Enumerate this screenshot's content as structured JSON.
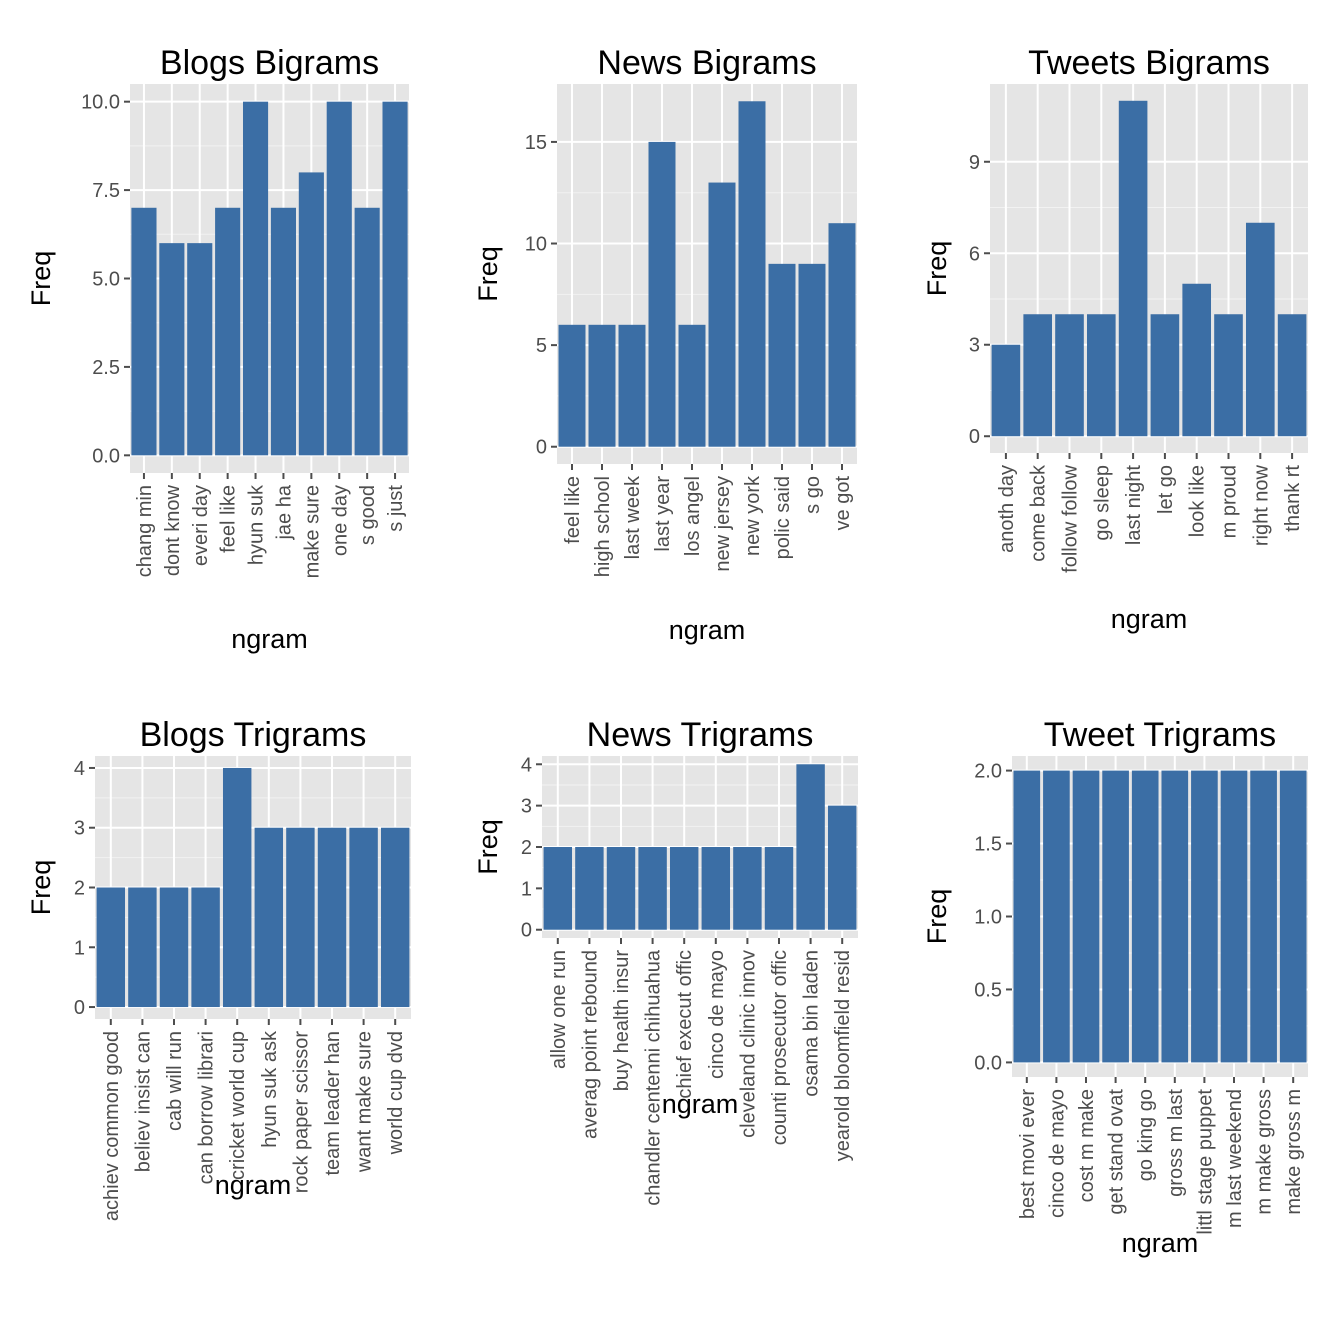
{
  "colors": {
    "bar": "#3b6ea5",
    "panel": "#e5e5e5",
    "grid": "#ffffff"
  },
  "chart_data": [
    {
      "type": "bar",
      "title": "Blogs Bigrams",
      "xlabel": "ngram",
      "ylabel": "Freq",
      "categories": [
        "chang min",
        "dont know",
        "everi day",
        "feel like",
        "hyun suk",
        "jae ha",
        "make sure",
        "one day",
        "s good",
        "s just"
      ],
      "values": [
        7,
        6,
        6,
        7,
        10,
        7,
        8,
        10,
        7,
        10
      ],
      "ylim": [
        -0.5,
        10.5
      ],
      "yticks": [
        0,
        2.5,
        5,
        7.5,
        10
      ],
      "ytick_labels": [
        "0.0",
        "2.5",
        "5.0",
        "7.5",
        "10.0"
      ]
    },
    {
      "type": "bar",
      "title": "News Bigrams",
      "xlabel": "ngram",
      "ylabel": "Freq",
      "categories": [
        "feel like",
        "high school",
        "last week",
        "last year",
        "los angel",
        "new jersey",
        "new york",
        "polic said",
        "s go",
        "ve got"
      ],
      "values": [
        6,
        6,
        6,
        15,
        6,
        13,
        17,
        9,
        9,
        11
      ],
      "ylim": [
        -0.85,
        17.85
      ],
      "yticks": [
        0,
        5,
        10,
        15
      ],
      "ytick_labels": [
        "0",
        "5",
        "10",
        "15"
      ]
    },
    {
      "type": "bar",
      "title": "Tweets Bigrams",
      "xlabel": "ngram",
      "ylabel": "Freq",
      "categories": [
        "anoth day",
        "come back",
        "follow follow",
        "go sleep",
        "last night",
        "let go",
        "look like",
        "m proud",
        "right now",
        "thank rt"
      ],
      "values": [
        3,
        4,
        4,
        4,
        11,
        4,
        5,
        4,
        7,
        4
      ],
      "ylim": [
        -0.55,
        11.55
      ],
      "yticks": [
        0,
        3,
        6,
        9
      ],
      "ytick_labels": [
        "0",
        "3",
        "6",
        "9"
      ]
    },
    {
      "type": "bar",
      "title": "Blogs Trigrams",
      "xlabel": "ngram",
      "ylabel": "Freq",
      "categories": [
        "achiev common good",
        "believ insist can",
        "cab will run",
        "can borrow librari",
        "cricket world cup",
        "hyun suk ask",
        "rock paper scissor",
        "team leader han",
        "want make sure",
        "world cup dvd"
      ],
      "values": [
        2,
        2,
        2,
        2,
        4,
        3,
        3,
        3,
        3,
        3
      ],
      "ylim": [
        -0.2,
        4.2
      ],
      "yticks": [
        0,
        1,
        2,
        3,
        4
      ],
      "ytick_labels": [
        "0",
        "1",
        "2",
        "3",
        "4"
      ]
    },
    {
      "type": "bar",
      "title": "News Trigrams",
      "xlabel": "ngram",
      "ylabel": "Freq",
      "categories": [
        "allow one run",
        "averag point rebound",
        "buy health insur",
        "chandler centenni chihuahua",
        "chief execut offic",
        "cinco de mayo",
        "cleveland clinic innov",
        "counti prosecutor offic",
        "osama bin laden",
        "yearold bloomfield resid"
      ],
      "values": [
        2,
        2,
        2,
        2,
        2,
        2,
        2,
        2,
        4,
        3
      ],
      "ylim": [
        -0.2,
        4.2
      ],
      "yticks": [
        0,
        1,
        2,
        3,
        4
      ],
      "ytick_labels": [
        "0",
        "1",
        "2",
        "3",
        "4"
      ]
    },
    {
      "type": "bar",
      "title": "Tweet Trigrams",
      "xlabel": "ngram",
      "ylabel": "Freq",
      "categories": [
        "best movi ever",
        "cinco de mayo",
        "cost m make",
        "get stand ovat",
        "go king go",
        "gross m last",
        "littl stage puppet",
        "m last weekend",
        "m make gross",
        "make gross m"
      ],
      "values": [
        2,
        2,
        2,
        2,
        2,
        2,
        2,
        2,
        2,
        2
      ],
      "ylim": [
        -0.1,
        2.1
      ],
      "yticks": [
        0,
        0.5,
        1,
        1.5,
        2
      ],
      "ytick_labels": [
        "0.0",
        "0.5",
        "1.0",
        "1.5",
        "2.0"
      ]
    }
  ]
}
